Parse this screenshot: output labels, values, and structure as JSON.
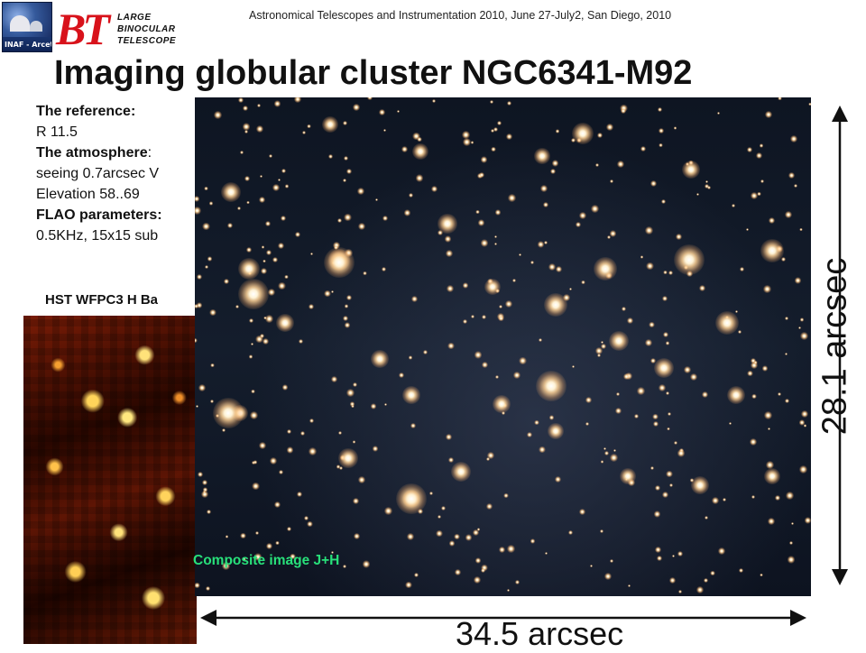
{
  "header": {
    "inaf_logo_text": "INAF - Arcetri",
    "lbt_logo_letters": "BT",
    "lbt_logo_words": [
      "LARGE",
      "BINOCULAR",
      "TELESCOPE"
    ],
    "conference": "Astronomical Telescopes and Instrumentation 2010, June 27-July2, San Diego, 2010"
  },
  "title": "Imaging globular cluster NGC6341-M92",
  "info": {
    "reference_label": "The reference:",
    "reference_value": "R 11.5",
    "atmosphere_label": "The atmosphere",
    "atmosphere_colon": ":",
    "seeing": "seeing 0.7arcsec V",
    "elevation": "Elevation 58..69",
    "flao_label": "FLAO parameters:",
    "flao_value": "0.5KHz, 15x15 sub"
  },
  "hst": {
    "label": "HST WFPC3 H Ba"
  },
  "composite": {
    "label": "Composite image J+H",
    "label_color": "#28e07a"
  },
  "scales": {
    "vertical": "28.1 arcsec",
    "horizontal": "34.5 arcsec"
  }
}
